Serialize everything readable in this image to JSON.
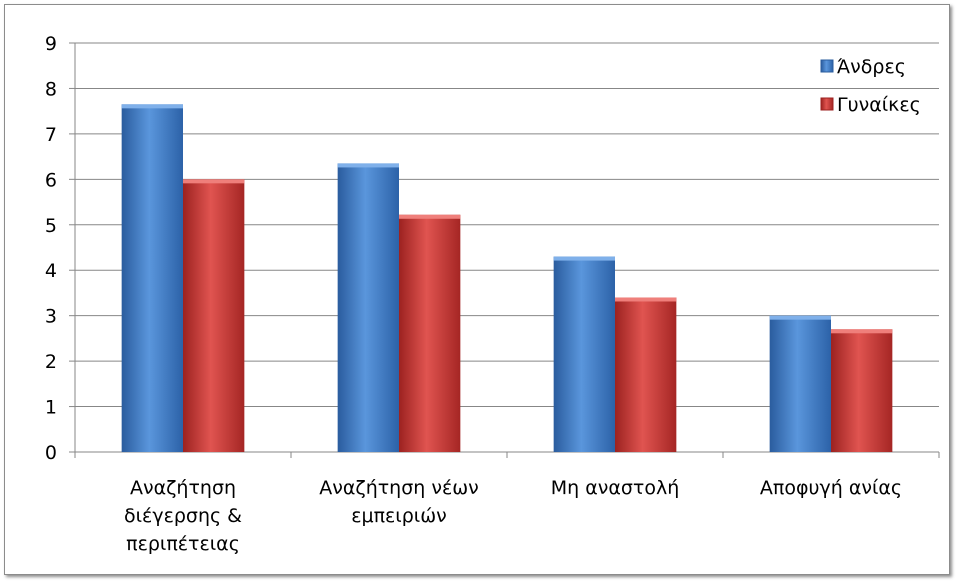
{
  "chart_data": {
    "type": "bar",
    "categories": [
      [
        "Αναζήτηση",
        "διέγερσης &",
        "περιπέτειας"
      ],
      [
        "Αναζήτηση νέων",
        "εμπειριών"
      ],
      [
        "Μη αναστολή"
      ],
      [
        "Αποφυγή ανίας"
      ]
    ],
    "series": [
      {
        "name": "Άνδρες",
        "values": [
          7.65,
          6.35,
          4.3,
          3.0
        ],
        "color": "#3a78c9"
      },
      {
        "name": "Γυναίκες",
        "values": [
          6.0,
          5.22,
          3.4,
          2.7
        ],
        "color": "#c9302c"
      }
    ],
    "ylim": [
      0,
      9
    ],
    "yticks": [
      "0",
      "1",
      "2",
      "3",
      "4",
      "5",
      "6",
      "7",
      "8",
      "9"
    ],
    "grid": true,
    "legend_position": "top-right"
  }
}
